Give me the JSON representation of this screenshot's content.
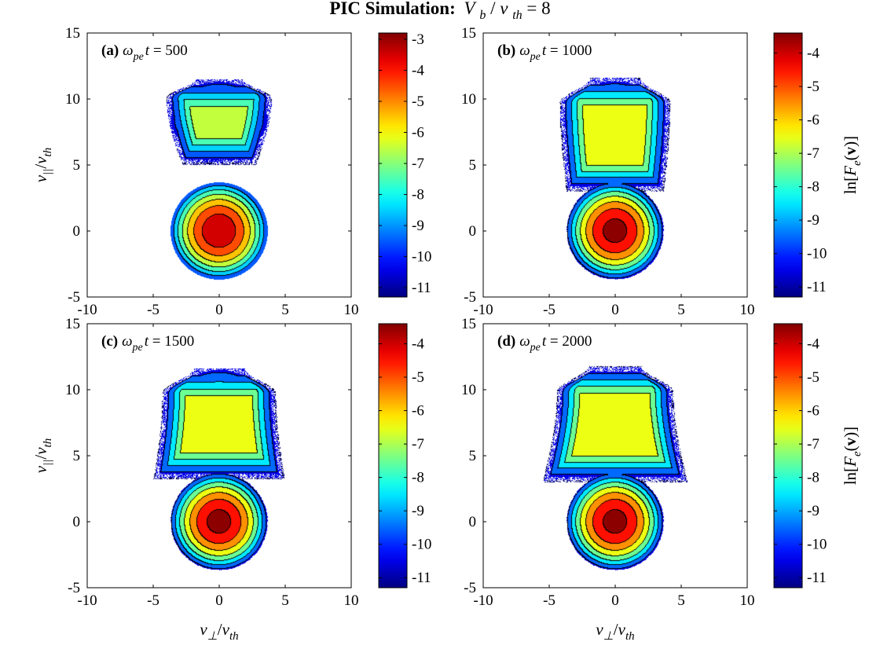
{
  "figure_title": {
    "bold": "PIC Simulation:",
    "V": "V",
    "V_sub": "b",
    "slash": "/",
    "v": "v",
    "v_sub": "th",
    "value": " = 8"
  },
  "axis_symbols": {
    "x_main": "v",
    "x_sub": "⊥",
    "x_denom": "v",
    "x_denom_sub": "th",
    "y_main": "v",
    "y_sub": "||",
    "y_denom": "v",
    "y_denom_sub": "th",
    "cb_prefix": "ln[",
    "cb_F": "F",
    "cb_F_sub": "e",
    "cb_paren_open": "(",
    "cb_v": "v",
    "cb_close": ")]"
  },
  "panel_label_parts": {
    "omega": "ω",
    "omega_sub": "pe",
    "t": "t",
    "equals": " = "
  },
  "chart_data": [
    {
      "type": "heatmap",
      "label": "(a)",
      "time": "500",
      "title": "(a) ω_pe t = 500",
      "xlabel": "v_⊥/v_th",
      "ylabel": "v_||/v_th",
      "xlim": [
        -10,
        10
      ],
      "ylim": [
        -5,
        15
      ],
      "xticks": [
        "-10",
        "-5",
        "0",
        "5",
        "10"
      ],
      "yticks": [
        "-5",
        "0",
        "5",
        "10",
        "15"
      ],
      "clim": [
        -11.3,
        -2.8
      ],
      "cticks": [
        "-3",
        "-4",
        "-5",
        "-6",
        "-7",
        "-8",
        "-9",
        "-10",
        "-11"
      ],
      "ctick_values": [
        -3,
        -4,
        -5,
        -6,
        -7,
        -8,
        -9,
        -10,
        -11
      ],
      "colorbar_label": "",
      "core": {
        "center": [
          0,
          0
        ],
        "peak": -3.2,
        "width": 1.0,
        "cutoff": -10.0
      },
      "beam": {
        "center": [
          0,
          8.5
        ],
        "peak": -6.3,
        "plateau": -6.9,
        "top": 11.5,
        "bottom": 5.0,
        "half_width_top": 4.0,
        "half_width_bottom": 2.6
      }
    },
    {
      "type": "heatmap",
      "label": "(b)",
      "time": "1000",
      "title": "(b) ω_pe t = 1000",
      "xlabel": "v_⊥/v_th",
      "ylabel": "v_||/v_th",
      "xlim": [
        -10,
        10
      ],
      "ylim": [
        -5,
        15
      ],
      "xticks": [
        "-10",
        "-5",
        "0",
        "5",
        "10"
      ],
      "yticks": [
        "-5",
        "0",
        "5",
        "10",
        "15"
      ],
      "clim": [
        -11.3,
        -3.4
      ],
      "cticks": [
        "-4",
        "-5",
        "-6",
        "-7",
        "-8",
        "-9",
        "-10",
        "-11"
      ],
      "ctick_values": [
        -4,
        -5,
        -6,
        -7,
        -8,
        -9,
        -10,
        -11
      ],
      "colorbar_label": "ln[F_e(v)]",
      "core": {
        "center": [
          0,
          0
        ],
        "peak": -3.6,
        "width": 1.0,
        "cutoff": -10.4
      },
      "beam": {
        "center": [
          0,
          8.6
        ],
        "peak": -6.4,
        "plateau": -6.9,
        "top": 11.6,
        "bottom": 3.0,
        "half_width_top": 4.2,
        "half_width_bottom": 3.6
      }
    },
    {
      "type": "heatmap",
      "label": "(c)",
      "time": "1500",
      "title": "(c) ω_pe t = 1500",
      "xlabel": "v_⊥/v_th",
      "ylabel": "v_||/v_th",
      "xlim": [
        -10,
        10
      ],
      "ylim": [
        -5,
        15
      ],
      "xticks": [
        "-10",
        "-5",
        "0",
        "5",
        "10"
      ],
      "yticks": [
        "-5",
        "0",
        "5",
        "10",
        "15"
      ],
      "clim": [
        -11.3,
        -3.4
      ],
      "cticks": [
        "-4",
        "-5",
        "-6",
        "-7",
        "-8",
        "-9",
        "-10",
        "-11"
      ],
      "ctick_values": [
        -4,
        -5,
        -6,
        -7,
        -8,
        -9,
        -10,
        -11
      ],
      "colorbar_label": "",
      "core": {
        "center": [
          0,
          0
        ],
        "peak": -3.6,
        "width": 1.0,
        "cutoff": -10.4
      },
      "beam": {
        "center": [
          0,
          8.9
        ],
        "peak": -6.6,
        "plateau": -6.9,
        "top": 11.6,
        "bottom": 3.2,
        "half_width_top": 4.3,
        "half_width_bottom": 5.1
      }
    },
    {
      "type": "heatmap",
      "label": "(d)",
      "time": "2000",
      "title": "(d) ω_pe t = 2000",
      "xlabel": "v_⊥/v_th",
      "ylabel": "v_||/v_th",
      "xlim": [
        -10,
        10
      ],
      "ylim": [
        -5,
        15
      ],
      "xticks": [
        "-10",
        "-5",
        "0",
        "5",
        "10"
      ],
      "yticks": [
        "-5",
        "0",
        "5",
        "10",
        "15"
      ],
      "clim": [
        -11.3,
        -3.4
      ],
      "cticks": [
        "-4",
        "-5",
        "-6",
        "-7",
        "-8",
        "-9",
        "-10",
        "-11"
      ],
      "ctick_values": [
        -4,
        -5,
        -6,
        -7,
        -8,
        -9,
        -10,
        -11
      ],
      "colorbar_label": "ln[F_e(v)]",
      "core": {
        "center": [
          0,
          0
        ],
        "peak": -3.6,
        "width": 1.0,
        "cutoff": -10.4
      },
      "beam": {
        "center": [
          0,
          8.6
        ],
        "peak": -6.9,
        "plateau": -6.9,
        "top": 11.8,
        "bottom": 3.0,
        "half_width_top": 4.4,
        "half_width_bottom": 5.7
      }
    }
  ]
}
